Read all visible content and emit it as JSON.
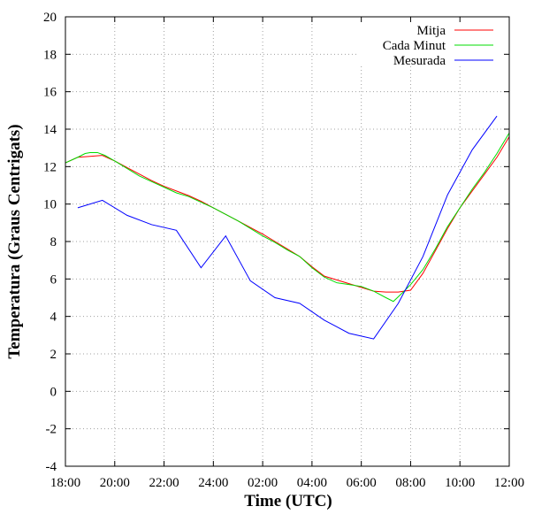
{
  "chart_data": {
    "type": "line",
    "title": "",
    "xlabel": "Time (UTC)",
    "ylabel": "Temperatura (Graus Centrigats)",
    "x_unit": "hours since 18:00",
    "xlim": [
      0,
      18
    ],
    "ylim": [
      -4,
      20
    ],
    "xticks": [
      {
        "value": 0,
        "label": "18:00"
      },
      {
        "value": 2,
        "label": "20:00"
      },
      {
        "value": 4,
        "label": "22:00"
      },
      {
        "value": 6,
        "label": "24:00"
      },
      {
        "value": 8,
        "label": "02:00"
      },
      {
        "value": 10,
        "label": "04:00"
      },
      {
        "value": 12,
        "label": "06:00"
      },
      {
        "value": 14,
        "label": "08:00"
      },
      {
        "value": 16,
        "label": "10:00"
      },
      {
        "value": 18,
        "label": "12:00"
      }
    ],
    "yticks": [
      {
        "value": -4,
        "label": "-4"
      },
      {
        "value": -2,
        "label": "-2"
      },
      {
        "value": 0,
        "label": "0"
      },
      {
        "value": 2,
        "label": "2"
      },
      {
        "value": 4,
        "label": "4"
      },
      {
        "value": 6,
        "label": "6"
      },
      {
        "value": 8,
        "label": "8"
      },
      {
        "value": 10,
        "label": "10"
      },
      {
        "value": 12,
        "label": "12"
      },
      {
        "value": 14,
        "label": "14"
      },
      {
        "value": 16,
        "label": "16"
      },
      {
        "value": 18,
        "label": "18"
      },
      {
        "value": 20,
        "label": "20"
      }
    ],
    "grid": true,
    "legend_position": "top-right",
    "series": [
      {
        "name": "Mitja",
        "color": "#ff0000",
        "x": [
          0,
          0.5,
          1.0,
          1.5,
          2.0,
          2.5,
          3.0,
          3.5,
          4.0,
          4.5,
          5.0,
          5.5,
          6.0,
          6.5,
          7.0,
          7.5,
          8.0,
          8.5,
          9.0,
          9.5,
          10.0,
          10.5,
          11.0,
          11.5,
          12.0,
          12.5,
          13.0,
          13.5,
          14.0,
          14.5,
          15.0,
          15.5,
          16.0,
          16.5,
          17.0,
          17.5,
          18.0
        ],
        "y": [
          12.2,
          12.5,
          12.55,
          12.6,
          12.3,
          11.95,
          11.6,
          11.25,
          10.95,
          10.7,
          10.45,
          10.15,
          9.8,
          9.45,
          9.1,
          8.75,
          8.4,
          8.0,
          7.6,
          7.2,
          6.65,
          6.15,
          5.95,
          5.75,
          5.55,
          5.35,
          5.3,
          5.3,
          5.4,
          6.3,
          7.5,
          8.7,
          9.8,
          10.7,
          11.6,
          12.5,
          13.6
        ]
      },
      {
        "name": "Cada Minut",
        "color": "#00dd00",
        "x": [
          0,
          0.5,
          0.8,
          1.0,
          1.3,
          1.6,
          2.0,
          2.5,
          3.0,
          3.5,
          4.0,
          4.5,
          5.0,
          5.5,
          6.0,
          6.5,
          7.0,
          7.5,
          8.0,
          8.5,
          9.0,
          9.5,
          10.0,
          10.5,
          11.0,
          11.5,
          12.0,
          12.5,
          13.0,
          13.3,
          13.7,
          14.0,
          14.5,
          15.0,
          15.5,
          16.0,
          16.5,
          17.0,
          17.5,
          18.0
        ],
        "y": [
          12.2,
          12.5,
          12.7,
          12.75,
          12.75,
          12.6,
          12.3,
          11.9,
          11.5,
          11.2,
          10.9,
          10.6,
          10.4,
          10.1,
          9.8,
          9.45,
          9.1,
          8.7,
          8.3,
          7.95,
          7.55,
          7.2,
          6.6,
          6.1,
          5.8,
          5.7,
          5.6,
          5.35,
          5.0,
          4.8,
          5.3,
          5.7,
          6.5,
          7.6,
          8.8,
          9.8,
          10.8,
          11.7,
          12.7,
          13.8
        ]
      },
      {
        "name": "Mesurada",
        "color": "#0000ff",
        "x": [
          0.5,
          1.5,
          2.5,
          3.5,
          4.5,
          5.5,
          6.5,
          7.5,
          8.5,
          9.5,
          10.5,
          11.5,
          12.5,
          13.5,
          14.5,
          15.5,
          16.5,
          17.5
        ],
        "y": [
          9.8,
          10.2,
          9.4,
          8.9,
          8.6,
          6.6,
          8.3,
          5.9,
          5.0,
          4.7,
          3.8,
          3.1,
          2.8,
          4.7,
          7.2,
          10.5,
          12.9,
          14.7
        ]
      }
    ]
  }
}
